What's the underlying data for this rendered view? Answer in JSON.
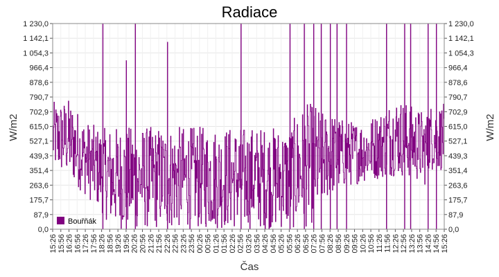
{
  "chart_data": {
    "type": "line",
    "title": "Radiace",
    "xlabel": "Čas",
    "ylabel": "W/m2",
    "ylim": [
      0,
      1230
    ],
    "yticks": [
      "0,0",
      "87,9",
      "175,7",
      "263,6",
      "351,4",
      "439,3",
      "527,1",
      "615,0",
      "702,9",
      "790,7",
      "878,6",
      "966,4",
      "1 054,3",
      "1 142,1",
      "1 230,0"
    ],
    "y2ticks": [
      "0,0",
      "87,9",
      "175,7",
      "263,6",
      "351,4",
      "439,3",
      "527,1",
      "615,0",
      "702,9",
      "790,7",
      "878,6",
      "966,4",
      "1 054,3",
      "1 142,1",
      "1 230,0"
    ],
    "xticks": [
      "15:26",
      "15:56",
      "16:26",
      "16:56",
      "17:26",
      "17:56",
      "18:26",
      "18:56",
      "19:26",
      "19:56",
      "20:26",
      "20:56",
      "21:26",
      "21:56",
      "22:26",
      "22:56",
      "23:26",
      "23:56",
      "00:26",
      "00:56",
      "01:26",
      "01:56",
      "02:26",
      "02:56",
      "03:26",
      "03:56",
      "04:26",
      "04:56",
      "05:26",
      "05:56",
      "06:26",
      "06:56",
      "07:26",
      "07:56",
      "08:26",
      "08:56",
      "09:26",
      "09:56",
      "10:26",
      "10:56",
      "11:26",
      "11:56",
      "12:26",
      "12:56",
      "13:26",
      "13:56",
      "14:26",
      "14:56",
      "15:26"
    ],
    "grid": true,
    "legend_position": "bottom-left",
    "series": [
      {
        "name": "Bouřňák",
        "color": "#800080",
        "envelope": {
          "x": [
            "15:26",
            "16:26",
            "17:26",
            "18:26",
            "18:56",
            "19:26",
            "20:26",
            "21:26",
            "22:26",
            "23:26",
            "00:26",
            "01:26",
            "02:26",
            "03:26",
            "04:26",
            "05:26",
            "05:56",
            "06:26",
            "06:56",
            "07:26",
            "07:56",
            "08:26",
            "09:26",
            "10:26",
            "11:26",
            "12:26",
            "13:26",
            "14:26",
            "15:26"
          ],
          "max": [
            760,
            780,
            650,
            600,
            615,
            615,
            615,
            615,
            615,
            615,
            615,
            615,
            615,
            615,
            615,
            615,
            615,
            700,
            750,
            760,
            700,
            700,
            650,
            650,
            700,
            800,
            740,
            700,
            750
          ],
          "min": [
            350,
            300,
            200,
            100,
            20,
            0,
            0,
            0,
            0,
            0,
            0,
            0,
            0,
            0,
            0,
            0,
            0,
            0,
            10,
            40,
            120,
            200,
            250,
            280,
            300,
            320,
            300,
            250,
            350
          ]
        },
        "spikes": [
          {
            "x": "18:26",
            "y": 1230
          },
          {
            "x": "19:56",
            "y": 1010
          },
          {
            "x": "20:26",
            "y": 1230
          },
          {
            "x": "22:26",
            "y": 1120
          },
          {
            "x": "02:56",
            "y": 1230
          },
          {
            "x": "05:56",
            "y": 1230
          },
          {
            "x": "06:56",
            "y": 1230
          },
          {
            "x": "07:26",
            "y": 1230
          },
          {
            "x": "07:56",
            "y": 1230
          },
          {
            "x": "08:26",
            "y": 1230
          },
          {
            "x": "08:56",
            "y": 1230
          },
          {
            "x": "09:26",
            "y": 1230
          },
          {
            "x": "11:56",
            "y": 1230
          },
          {
            "x": "12:56",
            "y": 1230
          },
          {
            "x": "13:26",
            "y": 1230
          },
          {
            "x": "14:26",
            "y": 1230
          },
          {
            "x": "14:56",
            "y": 1230
          }
        ]
      }
    ]
  }
}
